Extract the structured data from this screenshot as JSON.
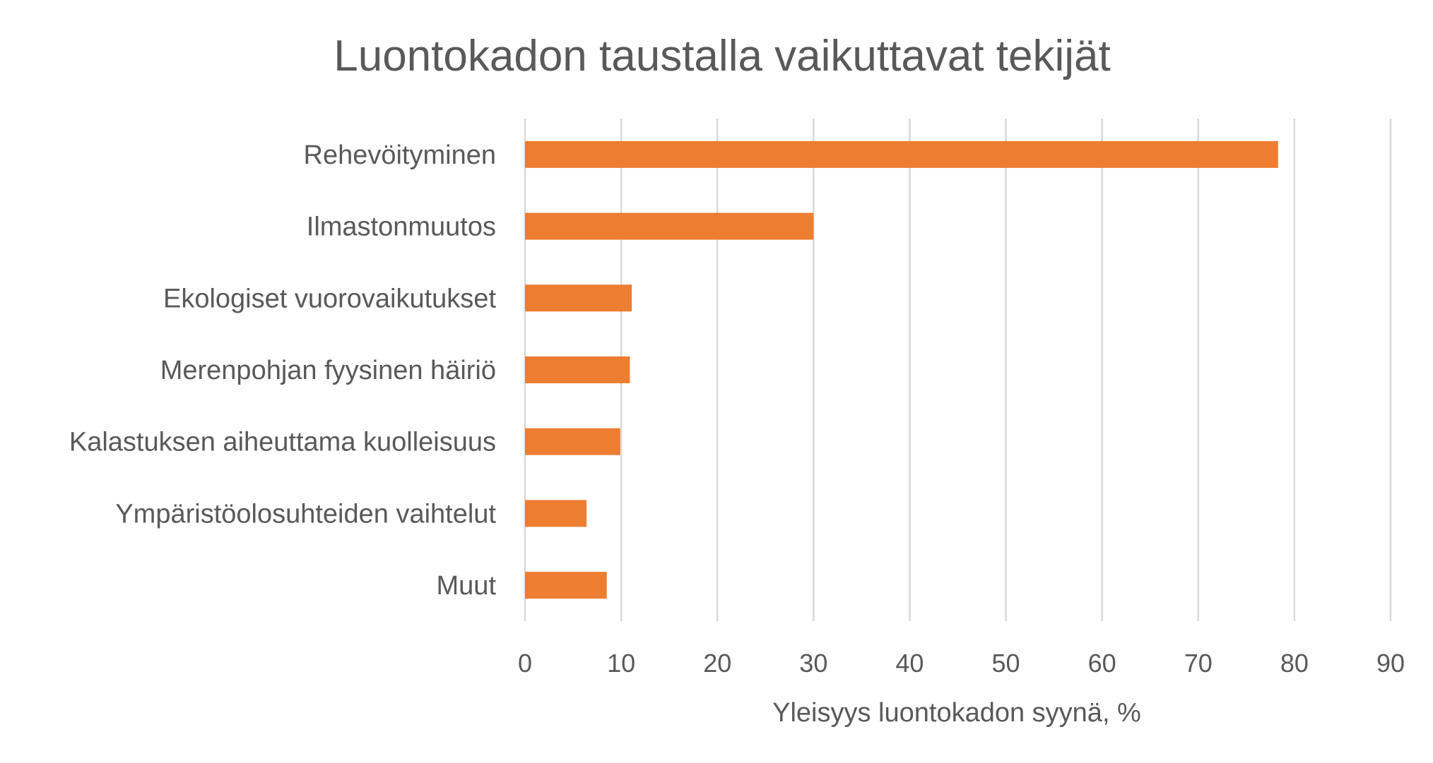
{
  "chart_data": {
    "type": "bar",
    "orientation": "horizontal",
    "title": "Luontokadon taustalla vaikuttavat tekijät",
    "xlabel": "Yleisyys luontokadon syynä, %",
    "ylabel": "",
    "categories": [
      "Rehevöityminen",
      "Ilmastonmuutos",
      "Ekologiset vuorovaikutukset",
      "Merenpohjan fyysinen häiriö",
      "Kalastuksen aiheuttama kuolleisuus",
      "Ympäristöolosuhteiden vaihtelut",
      "Muut"
    ],
    "values": [
      78.3,
      30.0,
      11.1,
      10.9,
      9.9,
      6.4,
      8.5
    ],
    "xlim": [
      0,
      90
    ],
    "xticks": [
      0,
      10,
      20,
      30,
      40,
      50,
      60,
      70,
      80,
      90
    ],
    "xtick_labels": [
      "0",
      "10",
      "20",
      "30",
      "40",
      "50",
      "60",
      "70",
      "80",
      "90"
    ],
    "grid": "vertical",
    "legend": "none",
    "bar_color": "#ed7d31"
  }
}
